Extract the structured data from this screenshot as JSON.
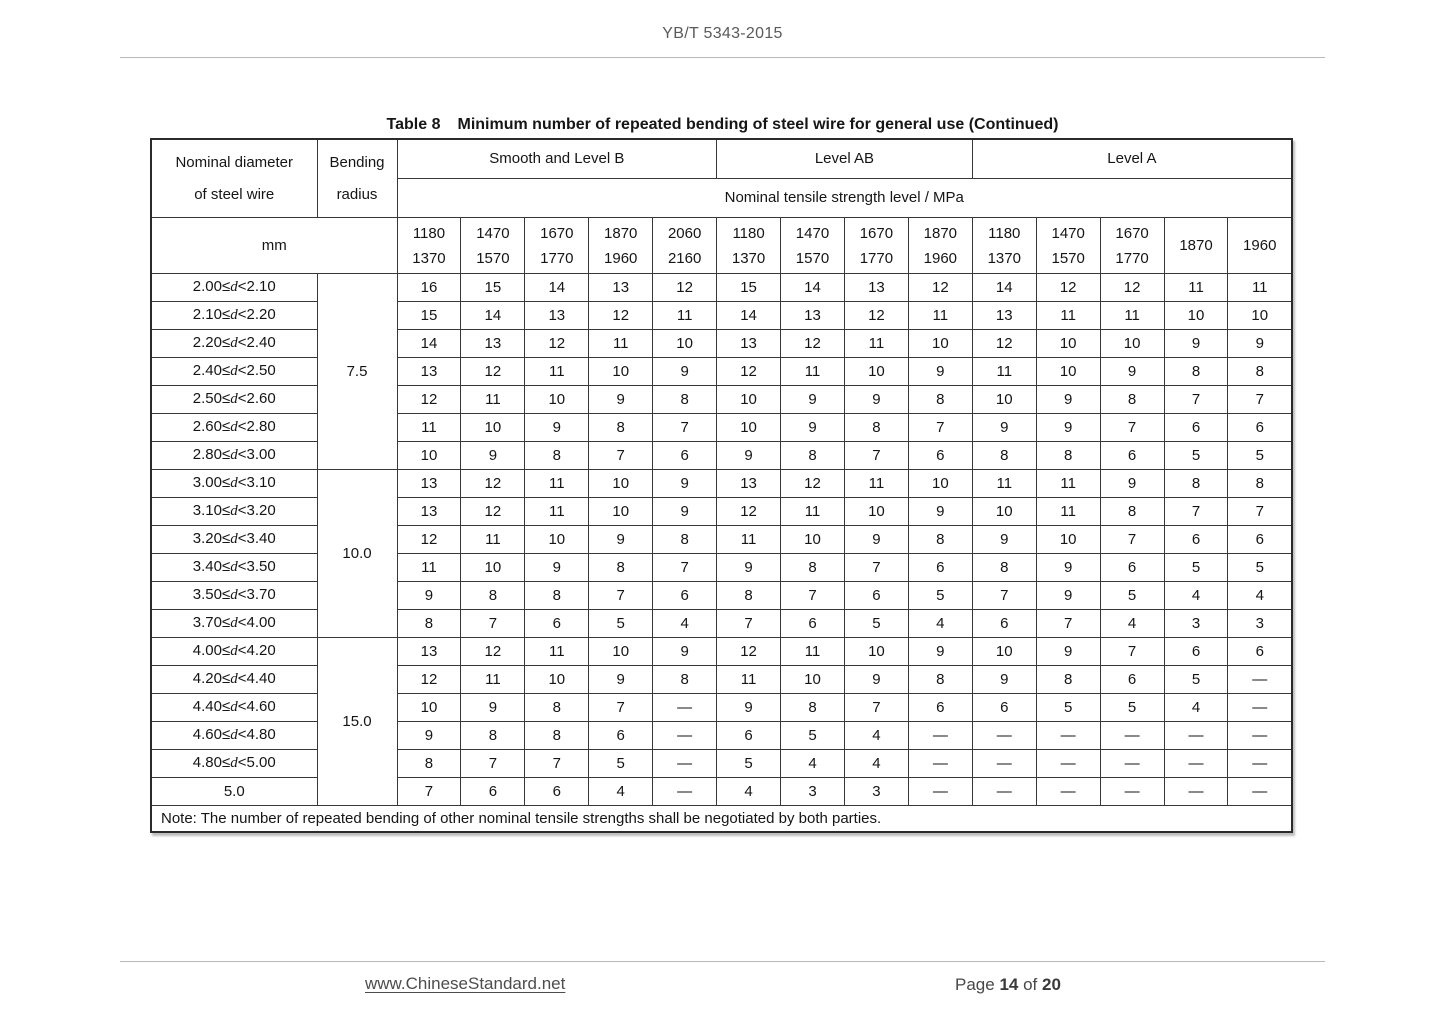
{
  "page": {
    "doc_code": "YB/T 5343-2015",
    "footer": {
      "site_link": "www.ChineseStandard.net",
      "page_label_prefix": "Page",
      "page_current": "14",
      "page_label_of": "of",
      "page_total": "20"
    }
  },
  "table": {
    "title_label": "Table 8",
    "title_text": "Minimum number of repeated bending of steel wire for general use (Continued)",
    "header": {
      "diameter_label_line1": "Nominal diameter",
      "diameter_label_line2": "of steel wire",
      "radius_label_line1": "Bending",
      "radius_label_line2": "radius",
      "unit": "mm",
      "strength_caption": "Nominal tensile strength level / MPa",
      "groups": [
        {
          "label": "Smooth and Level B",
          "colspan": 5
        },
        {
          "label": "Level AB",
          "colspan": 4
        },
        {
          "label": "Level A",
          "colspan": 5
        }
      ],
      "strength_columns": [
        [
          "1180",
          "1370"
        ],
        [
          "1470",
          "1570"
        ],
        [
          "1670",
          "1770"
        ],
        [
          "1870",
          "1960"
        ],
        [
          "2060",
          "2160"
        ],
        [
          "1180",
          "1370"
        ],
        [
          "1470",
          "1570"
        ],
        [
          "1670",
          "1770"
        ],
        [
          "1870",
          "1960"
        ],
        [
          "1180",
          "1370"
        ],
        [
          "1470",
          "1570"
        ],
        [
          "1670",
          "1770"
        ],
        [
          "1870"
        ],
        [
          "1960"
        ]
      ]
    },
    "row_groups": [
      {
        "bending_radius": "7.5",
        "rows": [
          {
            "diameter": "2.00≤d<2.10",
            "values": [
              "16",
              "15",
              "14",
              "13",
              "12",
              "15",
              "14",
              "13",
              "12",
              "14",
              "12",
              "12",
              "11",
              "11"
            ]
          },
          {
            "diameter": "2.10≤d<2.20",
            "values": [
              "15",
              "14",
              "13",
              "12",
              "11",
              "14",
              "13",
              "12",
              "11",
              "13",
              "11",
              "11",
              "10",
              "10"
            ]
          },
          {
            "diameter": "2.20≤d<2.40",
            "values": [
              "14",
              "13",
              "12",
              "11",
              "10",
              "13",
              "12",
              "11",
              "10",
              "12",
              "10",
              "10",
              "9",
              "9"
            ]
          },
          {
            "diameter": "2.40≤d<2.50",
            "values": [
              "13",
              "12",
              "11",
              "10",
              "9",
              "12",
              "11",
              "10",
              "9",
              "11",
              "10",
              "9",
              "8",
              "8"
            ]
          },
          {
            "diameter": "2.50≤d<2.60",
            "values": [
              "12",
              "11",
              "10",
              "9",
              "8",
              "10",
              "9",
              "9",
              "8",
              "10",
              "9",
              "8",
              "7",
              "7"
            ]
          },
          {
            "diameter": "2.60≤d<2.80",
            "values": [
              "11",
              "10",
              "9",
              "8",
              "7",
              "10",
              "9",
              "8",
              "7",
              "9",
              "9",
              "7",
              "6",
              "6"
            ]
          },
          {
            "diameter": "2.80≤d<3.00",
            "values": [
              "10",
              "9",
              "8",
              "7",
              "6",
              "9",
              "8",
              "7",
              "6",
              "8",
              "8",
              "6",
              "5",
              "5"
            ]
          }
        ]
      },
      {
        "bending_radius": "10.0",
        "rows": [
          {
            "diameter": "3.00≤d<3.10",
            "values": [
              "13",
              "12",
              "11",
              "10",
              "9",
              "13",
              "12",
              "11",
              "10",
              "11",
              "11",
              "9",
              "8",
              "8"
            ]
          },
          {
            "diameter": "3.10≤d<3.20",
            "values": [
              "13",
              "12",
              "11",
              "10",
              "9",
              "12",
              "11",
              "10",
              "9",
              "10",
              "11",
              "8",
              "7",
              "7"
            ]
          },
          {
            "diameter": "3.20≤d<3.40",
            "values": [
              "12",
              "11",
              "10",
              "9",
              "8",
              "11",
              "10",
              "9",
              "8",
              "9",
              "10",
              "7",
              "6",
              "6"
            ]
          },
          {
            "diameter": "3.40≤d<3.50",
            "values": [
              "11",
              "10",
              "9",
              "8",
              "7",
              "9",
              "8",
              "7",
              "6",
              "8",
              "9",
              "6",
              "5",
              "5"
            ]
          },
          {
            "diameter": "3.50≤d<3.70",
            "values": [
              "9",
              "8",
              "8",
              "7",
              "6",
              "8",
              "7",
              "6",
              "5",
              "7",
              "9",
              "5",
              "4",
              "4"
            ]
          },
          {
            "diameter": "3.70≤d<4.00",
            "values": [
              "8",
              "7",
              "6",
              "5",
              "4",
              "7",
              "6",
              "5",
              "4",
              "6",
              "7",
              "4",
              "3",
              "3"
            ]
          }
        ]
      },
      {
        "bending_radius": "15.0",
        "rows": [
          {
            "diameter": "4.00≤d<4.20",
            "values": [
              "13",
              "12",
              "11",
              "10",
              "9",
              "12",
              "11",
              "10",
              "9",
              "10",
              "9",
              "7",
              "6",
              "6"
            ]
          },
          {
            "diameter": "4.20≤d<4.40",
            "values": [
              "12",
              "11",
              "10",
              "9",
              "8",
              "11",
              "10",
              "9",
              "8",
              "9",
              "8",
              "6",
              "5",
              "—"
            ]
          },
          {
            "diameter": "4.40≤d<4.60",
            "values": [
              "10",
              "9",
              "8",
              "7",
              "—",
              "9",
              "8",
              "7",
              "6",
              "6",
              "5",
              "5",
              "4",
              "—"
            ]
          },
          {
            "diameter": "4.60≤d<4.80",
            "values": [
              "9",
              "8",
              "8",
              "6",
              "—",
              "6",
              "5",
              "4",
              "—",
              "—",
              "—",
              "—",
              "—",
              "—"
            ]
          },
          {
            "diameter": "4.80≤d<5.00",
            "values": [
              "8",
              "7",
              "7",
              "5",
              "—",
              "5",
              "4",
              "4",
              "—",
              "—",
              "—",
              "—",
              "—",
              "—"
            ]
          },
          {
            "diameter": "5.0",
            "values": [
              "7",
              "6",
              "6",
              "4",
              "—",
              "4",
              "3",
              "3",
              "—",
              "—",
              "—",
              "—",
              "—",
              "—"
            ]
          }
        ]
      }
    ],
    "note": "Note: The number of repeated bending of other nominal tensile strengths shall be negotiated by both parties."
  }
}
